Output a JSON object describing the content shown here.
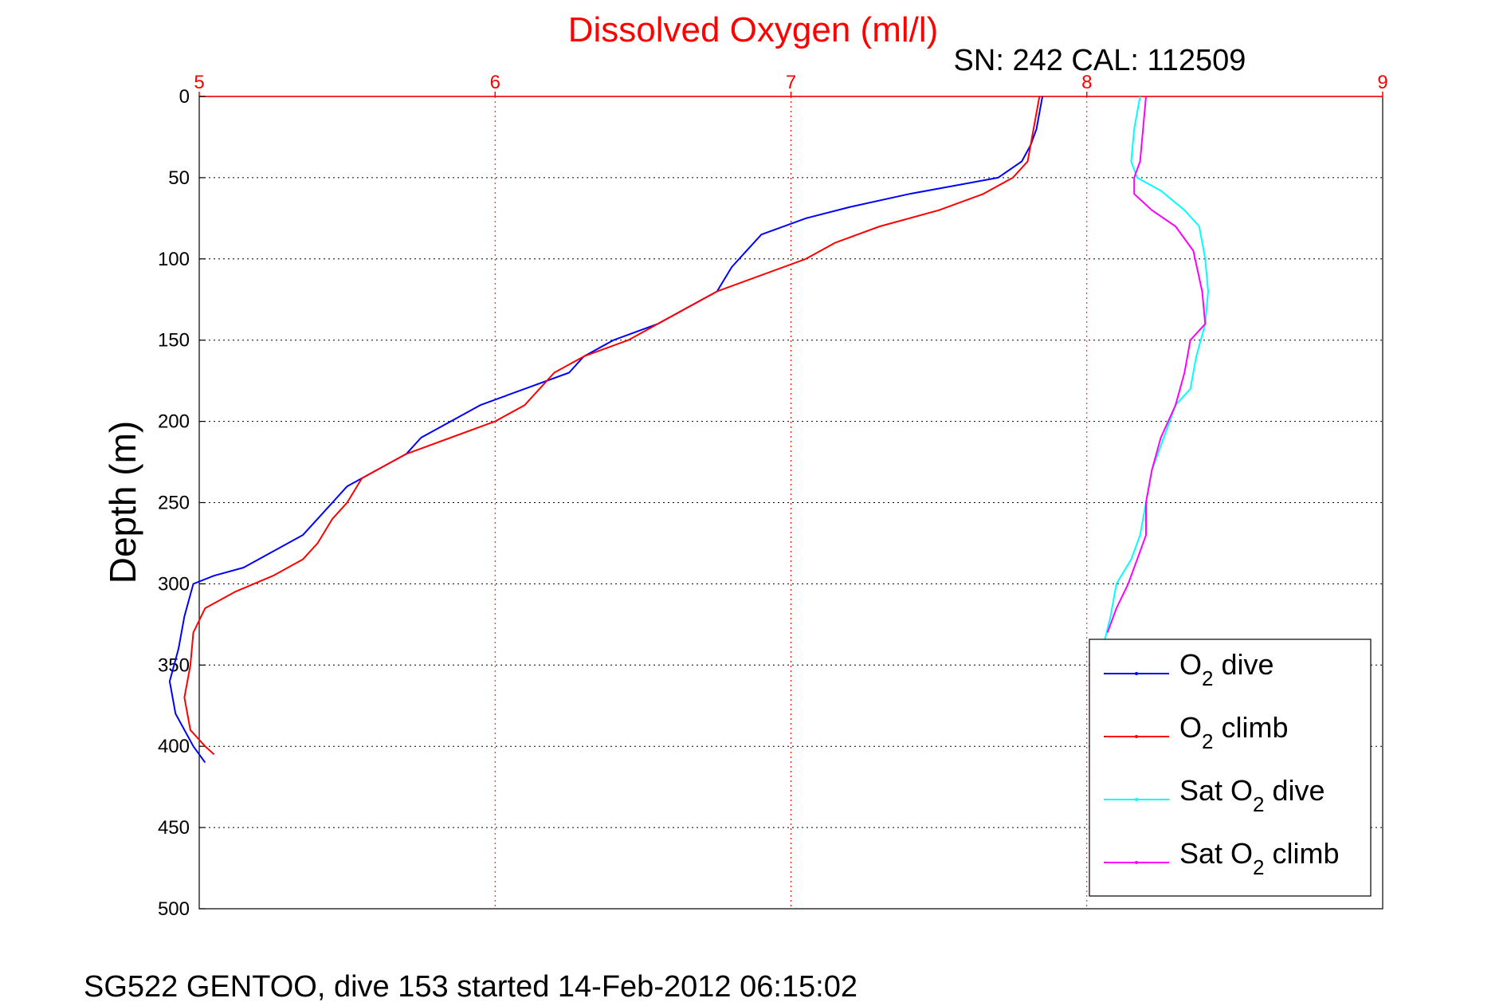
{
  "chart_data": {
    "type": "line",
    "title": "Dissolved Oxygen (ml/l)",
    "subtitle": "SN: 242  CAL: 112509",
    "ylabel": "Depth (m)",
    "footer": "SG522 GENTOO, dive 153 started 14-Feb-2012 06:15:02",
    "xlim": [
      5,
      9
    ],
    "ylim": [
      0,
      500
    ],
    "y_reversed": true,
    "x_axis_position": "top",
    "xticks": [
      "5",
      "6",
      "7",
      "8",
      "9"
    ],
    "yticks": [
      "0",
      "50",
      "100",
      "150",
      "200",
      "250",
      "300",
      "350",
      "400",
      "450",
      "500"
    ],
    "grid": true,
    "legend_position": "bottom-right",
    "colors": {
      "title": "#ff0000",
      "x_axis": "#ff0000",
      "grid_x": "#ff0000",
      "grid_y": "#000000"
    },
    "series": [
      {
        "name": "dive",
        "legend_main": "O",
        "legend_sub": "2",
        "legend_after": " dive",
        "color": "#0000ff",
        "points": [
          [
            7.85,
            0
          ],
          [
            7.84,
            10
          ],
          [
            7.83,
            20
          ],
          [
            7.81,
            30
          ],
          [
            7.78,
            40
          ],
          [
            7.7,
            50
          ],
          [
            7.55,
            55
          ],
          [
            7.4,
            60
          ],
          [
            7.2,
            68
          ],
          [
            7.05,
            75
          ],
          [
            6.9,
            85
          ],
          [
            6.85,
            95
          ],
          [
            6.8,
            105
          ],
          [
            6.75,
            120
          ],
          [
            6.65,
            130
          ],
          [
            6.55,
            140
          ],
          [
            6.4,
            150
          ],
          [
            6.3,
            160
          ],
          [
            6.25,
            170
          ],
          [
            6.1,
            180
          ],
          [
            5.95,
            190
          ],
          [
            5.85,
            200
          ],
          [
            5.75,
            210
          ],
          [
            5.7,
            220
          ],
          [
            5.6,
            230
          ],
          [
            5.5,
            240
          ],
          [
            5.45,
            250
          ],
          [
            5.4,
            260
          ],
          [
            5.35,
            270
          ],
          [
            5.25,
            280
          ],
          [
            5.15,
            290
          ],
          [
            5.05,
            295
          ],
          [
            4.98,
            300
          ],
          [
            4.95,
            320
          ],
          [
            4.93,
            340
          ],
          [
            4.9,
            360
          ],
          [
            4.92,
            380
          ],
          [
            4.98,
            400
          ],
          [
            5.02,
            410
          ]
        ]
      },
      {
        "name": "climb",
        "legend_main": "O",
        "legend_sub": "2",
        "legend_after": " climb",
        "color": "#ff0000",
        "points": [
          [
            7.84,
            0
          ],
          [
            7.82,
            20
          ],
          [
            7.8,
            40
          ],
          [
            7.75,
            50
          ],
          [
            7.65,
            60
          ],
          [
            7.5,
            70
          ],
          [
            7.3,
            80
          ],
          [
            7.15,
            90
          ],
          [
            7.05,
            100
          ],
          [
            6.9,
            110
          ],
          [
            6.75,
            120
          ],
          [
            6.6,
            135
          ],
          [
            6.45,
            150
          ],
          [
            6.3,
            160
          ],
          [
            6.2,
            170
          ],
          [
            6.1,
            190
          ],
          [
            6.0,
            200
          ],
          [
            5.85,
            210
          ],
          [
            5.7,
            220
          ],
          [
            5.55,
            235
          ],
          [
            5.5,
            250
          ],
          [
            5.45,
            260
          ],
          [
            5.4,
            275
          ],
          [
            5.35,
            285
          ],
          [
            5.25,
            295
          ],
          [
            5.12,
            305
          ],
          [
            5.02,
            315
          ],
          [
            4.98,
            330
          ],
          [
            4.97,
            350
          ],
          [
            4.95,
            370
          ],
          [
            4.97,
            390
          ],
          [
            5.02,
            400
          ],
          [
            5.05,
            405
          ]
        ]
      },
      {
        "name": "Sat dive",
        "legend_main": "Sat O",
        "legend_sub": "2",
        "legend_after": " dive",
        "color": "#00ffff",
        "points": [
          [
            8.18,
            0
          ],
          [
            8.16,
            20
          ],
          [
            8.15,
            40
          ],
          [
            8.17,
            50
          ],
          [
            8.25,
            58
          ],
          [
            8.33,
            70
          ],
          [
            8.38,
            80
          ],
          [
            8.4,
            100
          ],
          [
            8.41,
            120
          ],
          [
            8.4,
            140
          ],
          [
            8.37,
            160
          ],
          [
            8.35,
            180
          ],
          [
            8.3,
            190
          ],
          [
            8.28,
            200
          ],
          [
            8.25,
            215
          ],
          [
            8.22,
            230
          ],
          [
            8.2,
            250
          ],
          [
            8.18,
            270
          ],
          [
            8.15,
            285
          ],
          [
            8.1,
            300
          ],
          [
            8.08,
            320
          ],
          [
            8.06,
            335
          ]
        ]
      },
      {
        "name": "Sat climb",
        "legend_main": "Sat O",
        "legend_sub": "2",
        "legend_after": " climb",
        "color": "#ff00ff",
        "points": [
          [
            8.2,
            0
          ],
          [
            8.19,
            20
          ],
          [
            8.18,
            40
          ],
          [
            8.16,
            50
          ],
          [
            8.16,
            60
          ],
          [
            8.22,
            70
          ],
          [
            8.3,
            80
          ],
          [
            8.36,
            95
          ],
          [
            8.39,
            120
          ],
          [
            8.4,
            140
          ],
          [
            8.35,
            150
          ],
          [
            8.33,
            170
          ],
          [
            8.3,
            190
          ],
          [
            8.25,
            210
          ],
          [
            8.22,
            230
          ],
          [
            8.2,
            250
          ],
          [
            8.2,
            270
          ],
          [
            8.17,
            285
          ],
          [
            8.14,
            300
          ],
          [
            8.1,
            315
          ],
          [
            8.07,
            330
          ]
        ]
      }
    ]
  }
}
